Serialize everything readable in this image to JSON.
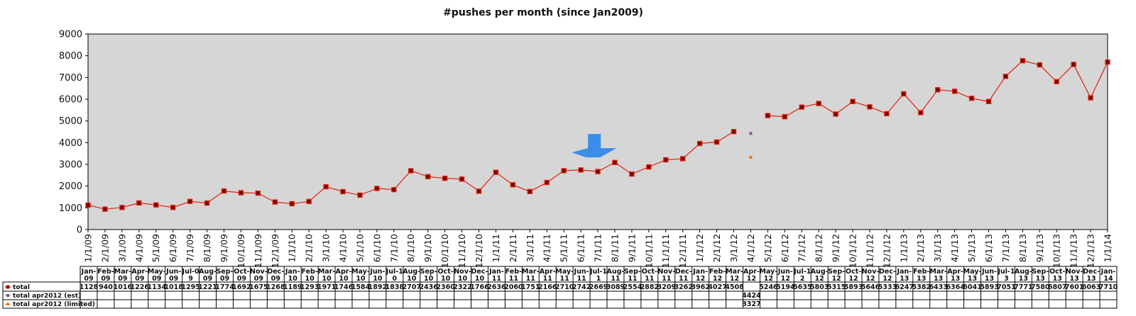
{
  "chart_data": {
    "type": "line",
    "title": "#pushes per month (since Jan2009)",
    "ylim": [
      0,
      9000
    ],
    "yticks": [
      "0",
      "1000",
      "2000",
      "3000",
      "4000",
      "5000",
      "6000",
      "7000",
      "8000",
      "9000"
    ],
    "x_labels": [
      "1/1/09",
      "2/1/09",
      "3/1/09",
      "4/1/09",
      "5/1/09",
      "6/1/09",
      "7/1/09",
      "8/1/09",
      "9/1/09",
      "10/1/09",
      "11/1/09",
      "12/1/09",
      "1/1/10",
      "2/1/10",
      "3/1/10",
      "4/1/10",
      "5/1/10",
      "6/1/10",
      "7/1/10",
      "8/1/10",
      "9/1/10",
      "10/1/10",
      "11/1/10",
      "12/1/10",
      "1/1/11",
      "2/1/11",
      "3/1/11",
      "4/1/11",
      "5/1/11",
      "6/1/11",
      "7/1/11",
      "8/1/11",
      "9/1/11",
      "10/1/11",
      "11/1/11",
      "12/1/11",
      "1/1/12",
      "2/1/12",
      "3/1/12",
      "4/1/12",
      "5/1/12",
      "6/1/12",
      "7/1/12",
      "8/1/12",
      "9/1/12",
      "10/1/12",
      "11/1/12",
      "12/1/12",
      "1/1/13",
      "2/1/13",
      "3/1/13",
      "4/1/13",
      "5/1/13",
      "6/1/13",
      "7/1/13",
      "8/1/13",
      "9/1/13",
      "10/1/13",
      "11/1/13",
      "12/1/13",
      "1/1/14"
    ],
    "categories": [
      [
        "Jan-",
        "09"
      ],
      [
        "Feb-",
        "09"
      ],
      [
        "Mar-",
        "09"
      ],
      [
        "Apr-",
        "09"
      ],
      [
        "May-",
        "09"
      ],
      [
        "Jun-",
        "09"
      ],
      [
        "Jul-0",
        "9"
      ],
      [
        "Aug-",
        "09"
      ],
      [
        "Sep-",
        "09"
      ],
      [
        "Oct-",
        "09"
      ],
      [
        "Nov-",
        "09"
      ],
      [
        "Dec-",
        "09"
      ],
      [
        "Jan-",
        "10"
      ],
      [
        "Feb-",
        "10"
      ],
      [
        "Mar-",
        "10"
      ],
      [
        "Apr-",
        "10"
      ],
      [
        "May-",
        "10"
      ],
      [
        "Jun-",
        "10"
      ],
      [
        "Jul-1",
        "0"
      ],
      [
        "Aug-",
        "10"
      ],
      [
        "Sep-",
        "10"
      ],
      [
        "Oct-",
        "10"
      ],
      [
        "Nov-",
        "10"
      ],
      [
        "Dec-",
        "10"
      ],
      [
        "Jan-",
        "11"
      ],
      [
        "Feb-",
        "11"
      ],
      [
        "Mar-",
        "11"
      ],
      [
        "Apr-",
        "11"
      ],
      [
        "May-",
        "11"
      ],
      [
        "Jun-",
        "11"
      ],
      [
        "Jul-1",
        "1"
      ],
      [
        "Aug-",
        "11"
      ],
      [
        "Sep-",
        "11"
      ],
      [
        "Oct-",
        "11"
      ],
      [
        "Nov-",
        "11"
      ],
      [
        "Dec-",
        "11"
      ],
      [
        "Jan-",
        "12"
      ],
      [
        "Feb-",
        "12"
      ],
      [
        "Mar-",
        "12"
      ],
      [
        "Apr-",
        "12"
      ],
      [
        "May-",
        "12"
      ],
      [
        "Jun-",
        "12"
      ],
      [
        "Jul-1",
        "2"
      ],
      [
        "Aug-",
        "12"
      ],
      [
        "Sep-",
        "12"
      ],
      [
        "Oct-",
        "12"
      ],
      [
        "Nov-",
        "12"
      ],
      [
        "Dec-",
        "12"
      ],
      [
        "Jan-",
        "13"
      ],
      [
        "Feb-",
        "13"
      ],
      [
        "Mar-",
        "13"
      ],
      [
        "Apr-",
        "13"
      ],
      [
        "May-",
        "13"
      ],
      [
        "Jun-",
        "13"
      ],
      [
        "Jul-1",
        "3"
      ],
      [
        "Aug-",
        "13"
      ],
      [
        "Sep-",
        "13"
      ],
      [
        "Oct-",
        "13"
      ],
      [
        "Nov-",
        "13"
      ],
      [
        "Dec-",
        "13"
      ],
      [
        "Jan-",
        "14"
      ]
    ],
    "series": [
      {
        "name": "total",
        "color": "#e02010",
        "values": [
          1128,
          940,
          1016,
          1226,
          1134,
          1018,
          1295,
          1221,
          1774,
          1692,
          1675,
          1268,
          1189,
          1293,
          1971,
          1746,
          1584,
          1892,
          1838,
          2707,
          2436,
          2360,
          2322,
          1766,
          2636,
          2060,
          1751,
          2166,
          2710,
          2742,
          2669,
          3089,
          2554,
          2882,
          3209,
          3262,
          3962,
          4027,
          4508,
          null,
          5246,
          5194,
          5635,
          5803,
          5315,
          5893,
          5646,
          5333,
          6247,
          5382,
          6433,
          6364,
          6041,
          5893,
          7051,
          7771,
          7580,
          6807,
          7601,
          6063,
          7710
        ]
      },
      {
        "name": "total apr2012 (est)",
        "color": "#805a8a",
        "values": [
          null,
          null,
          null,
          null,
          null,
          null,
          null,
          null,
          null,
          null,
          null,
          null,
          null,
          null,
          null,
          null,
          null,
          null,
          null,
          null,
          null,
          null,
          null,
          null,
          null,
          null,
          null,
          null,
          null,
          null,
          null,
          null,
          null,
          null,
          null,
          null,
          null,
          null,
          null,
          4424,
          null,
          null,
          null,
          null,
          null,
          null,
          null,
          null,
          null,
          null,
          null,
          null,
          null,
          null,
          null,
          null,
          null,
          null,
          null,
          null,
          null
        ]
      },
      {
        "name": "total apr2012 (limited)",
        "color": "#f07010",
        "values": [
          null,
          null,
          null,
          null,
          null,
          null,
          null,
          null,
          null,
          null,
          null,
          null,
          null,
          null,
          null,
          null,
          null,
          null,
          null,
          null,
          null,
          null,
          null,
          null,
          null,
          null,
          null,
          null,
          null,
          null,
          null,
          null,
          null,
          null,
          null,
          null,
          null,
          null,
          null,
          3327,
          null,
          null,
          null,
          null,
          null,
          null,
          null,
          null,
          null,
          null,
          null,
          null,
          null,
          null,
          null,
          null,
          null,
          null,
          null,
          null,
          null
        ]
      }
    ],
    "plot_background": "#d6d6d6",
    "annotation_arrow_color": "#3a8ee8",
    "annotation_arrow_index": 29.8,
    "annotation_arrow_value": 4400
  }
}
